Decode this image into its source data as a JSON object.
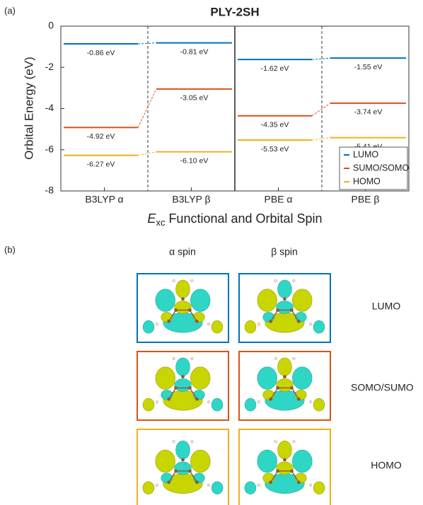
{
  "chart_data": {
    "type": "level",
    "panel_label": "(a)",
    "title": "PLY-2SH",
    "ylabel": "Orbital Energy (eV)",
    "xlabel": {
      "symbol": "E",
      "subscript": "xc",
      "text": "Functional and Orbital Spin"
    },
    "categories": [
      "B3LYP α",
      "B3LYP β",
      "PBE α",
      "PBE β"
    ],
    "series": [
      {
        "name": "LUMO",
        "color": "#0072bd",
        "values": [
          -0.86,
          -0.81,
          -1.62,
          -1.55
        ],
        "value_labels": [
          "-0.86 eV",
          "-0.81 eV",
          "-1.62 eV",
          "-1.55 eV"
        ]
      },
      {
        "name": "SUMO/SOMO",
        "color": "#d95319",
        "values": [
          -4.92,
          -3.05,
          -4.35,
          -3.74
        ],
        "value_labels": [
          "-4.92 eV",
          "-3.05 eV",
          "-4.35 eV",
          "-3.74 eV"
        ]
      },
      {
        "name": "HOMO",
        "color": "#edb120",
        "values": [
          -6.27,
          -6.1,
          -5.53,
          -5.41
        ],
        "value_labels": [
          "-6.27 eV",
          "-6.10 eV",
          "-5.53 eV",
          "-5.41 eV"
        ]
      }
    ],
    "ylim": [
      -8,
      0
    ],
    "yticks": [
      -8,
      -6,
      -4,
      -2,
      0
    ],
    "legend": "lower right"
  },
  "panel_b": {
    "panel_label": "(b)",
    "columns": [
      "α spin",
      "β spin"
    ],
    "rows": [
      "LUMO",
      "SOMO/SUMO",
      "HOMO"
    ]
  }
}
